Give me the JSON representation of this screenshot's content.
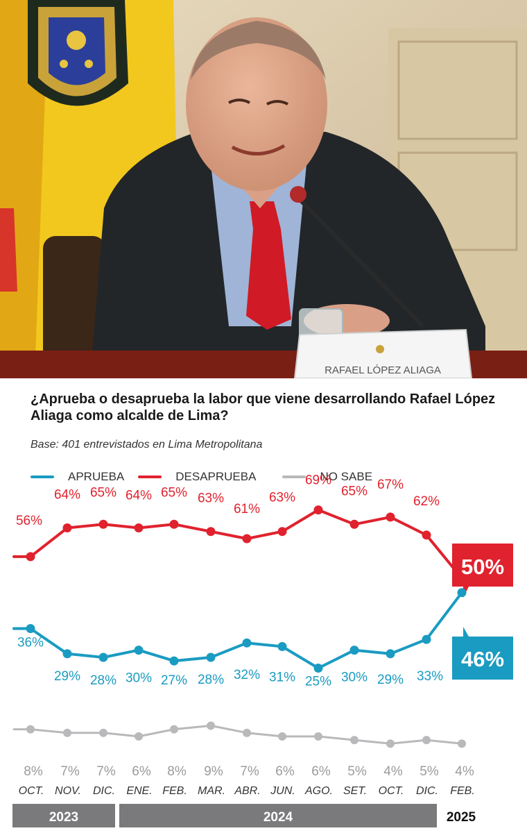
{
  "photo": {
    "nameplate_text": "RAFAEL LÓPEZ ALIAGA",
    "colors": {
      "wall": "#d9c9a8",
      "flag_yellow": "#f2c81e",
      "suit": "#222629",
      "tie": "#d01a26",
      "shirt": "#9fb4d6",
      "skin": "#e0a98c",
      "table": "#7a1f14"
    }
  },
  "chart_title": "¿Aprueba o desaprueba la labor que viene desarrollando Rafael López Aliaga como alcalde de Lima?",
  "chart_subtitle": "Base: 401 entrevistados en Lima Metropolitana",
  "colors": {
    "aprueba": "#1a9bc1",
    "desaprueba": "#e0222e",
    "no_sabe": "#b9b9bb",
    "year_bar": "#7a7a7d"
  },
  "chart_data": {
    "type": "line",
    "categories": [
      "OCT.",
      "NOV.",
      "DIC.",
      "ENE.",
      "FEB.",
      "MAR.",
      "ABR.",
      "JUN.",
      "AGO.",
      "SET.",
      "OCT.",
      "DIC.",
      "FEB."
    ],
    "years": [
      {
        "label": "2023",
        "from": 0,
        "to": 2
      },
      {
        "label": "2024",
        "from": 3,
        "to": 11
      },
      {
        "label": "2025",
        "from": 12,
        "to": 12
      }
    ],
    "series": [
      {
        "name": "DESAPRUEBA",
        "values": [
          56,
          64,
          65,
          64,
          65,
          63,
          61,
          63,
          69,
          65,
          67,
          62,
          50
        ]
      },
      {
        "name": "APRUEBA",
        "values": [
          36,
          29,
          28,
          30,
          27,
          28,
          32,
          31,
          25,
          30,
          29,
          33,
          46
        ]
      },
      {
        "name": "NO SABE",
        "values": [
          8,
          7,
          7,
          6,
          8,
          9,
          7,
          6,
          6,
          5,
          4,
          5,
          4
        ]
      }
    ],
    "value_labels": {
      "DESAPRUEBA": [
        "56%",
        "64%",
        "65%",
        "64%",
        "65%",
        "63%",
        "61%",
        "63%",
        "69%",
        "65%",
        "67%",
        "62%",
        "50%"
      ],
      "APRUEBA": [
        "36%",
        "29%",
        "28%",
        "30%",
        "27%",
        "28%",
        "32%",
        "31%",
        "25%",
        "30%",
        "29%",
        "33%",
        "46%"
      ],
      "NO SABE": [
        "8%",
        "7%",
        "7%",
        "6%",
        "8%",
        "9%",
        "7%",
        "6%",
        "6%",
        "5%",
        "4%",
        "5%",
        "4%"
      ]
    },
    "ylim": [
      0,
      100
    ],
    "grid": false,
    "legend": "top-left"
  }
}
